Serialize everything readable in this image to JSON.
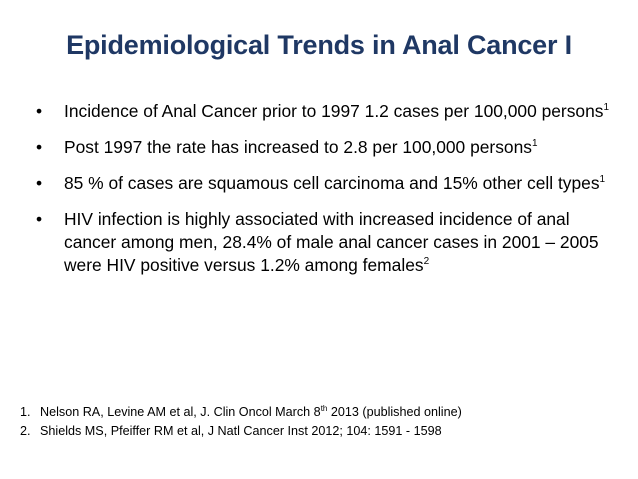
{
  "slide": {
    "title": "Epidemiological Trends in Anal Cancer I",
    "bullet_symbol": "•",
    "bullets": [
      {
        "text": "Incidence of Anal Cancer prior to 1997 1.2 cases per 100,000 persons",
        "sup": "1"
      },
      {
        "text": "Post 1997 the rate has increased to 2.8 per 100,000 persons",
        "sup": "1"
      },
      {
        "text": "85 % of cases are squamous cell carcinoma and 15% other cell types",
        "sup": "1"
      },
      {
        "text": "HIV infection is highly associated with increased incidence of anal cancer among men, 28.4% of male  anal cancer cases in 2001 – 2005 were HIV positive versus 1.2% among females",
        "sup": "2"
      }
    ],
    "references": [
      {
        "num": "1.",
        "before": "Nelson RA, Levine AM et al, J. Clin Oncol March 8",
        "sup": "th",
        "after": " 2013 (published online)"
      },
      {
        "num": "2.",
        "before": "Shields MS, Pfeiffer RM et al, J Natl Cancer Inst 2012; 104: 1591 - 1598",
        "sup": "",
        "after": ""
      }
    ]
  }
}
